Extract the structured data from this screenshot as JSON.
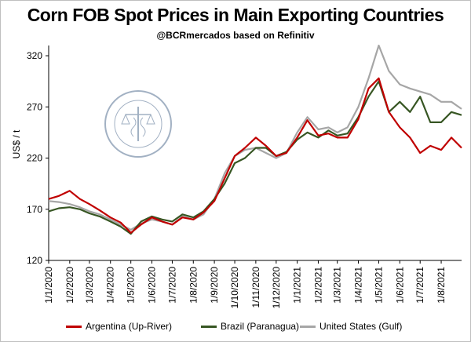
{
  "chart_data": {
    "type": "line",
    "title": "Corn FOB Spot Prices in Main Exporting Countries",
    "subtitle": "@BCRmercados based on Refinitiv",
    "ylabel": "US$ / t",
    "ylim": [
      120,
      330
    ],
    "yticks": [
      120,
      170,
      220,
      270,
      320
    ],
    "xlim": [
      "2020-01-01",
      "2021-08-31"
    ],
    "xticks": [
      "1/1/2020",
      "1/2/2020",
      "1/3/2020",
      "1/4/2020",
      "1/5/2020",
      "1/6/2020",
      "1/7/2020",
      "1/8/2020",
      "1/9/2020",
      "1/10/2020",
      "1/11/2020",
      "1/12/2020",
      "1/1/2021",
      "1/2/2021",
      "1/3/2021",
      "1/4/2021",
      "1/5/2021",
      "1/6/2021",
      "1/7/2021",
      "1/8/2021"
    ],
    "x_dates": [
      "2020-01-01",
      "2020-01-16",
      "2020-02-01",
      "2020-02-16",
      "2020-03-01",
      "2020-03-16",
      "2020-04-01",
      "2020-04-16",
      "2020-05-01",
      "2020-05-16",
      "2020-06-01",
      "2020-06-16",
      "2020-07-01",
      "2020-07-16",
      "2020-08-01",
      "2020-08-16",
      "2020-09-01",
      "2020-09-16",
      "2020-10-01",
      "2020-10-16",
      "2020-11-01",
      "2020-11-16",
      "2020-12-01",
      "2020-12-16",
      "2021-01-01",
      "2021-01-16",
      "2021-02-01",
      "2021-02-16",
      "2021-03-01",
      "2021-03-16",
      "2021-04-01",
      "2021-04-16",
      "2021-05-01",
      "2021-05-16",
      "2021-06-01",
      "2021-06-16",
      "2021-07-01",
      "2021-07-16",
      "2021-08-01",
      "2021-08-16",
      "2021-08-31"
    ],
    "series": [
      {
        "name": "Argentina (Up-River)",
        "color": "#c00000",
        "values": [
          180,
          183,
          188,
          180,
          175,
          169,
          162,
          157,
          147,
          155,
          162,
          158,
          155,
          162,
          160,
          167,
          178,
          200,
          222,
          230,
          240,
          232,
          222,
          225,
          240,
          257,
          242,
          244,
          240,
          240,
          258,
          288,
          298,
          265,
          250,
          240,
          225,
          232,
          228,
          240,
          230
        ]
      },
      {
        "name": "Brazil (Paranagua)",
        "color": "#375623",
        "values": [
          168,
          171,
          172,
          170,
          166,
          163,
          158,
          153,
          146,
          158,
          163,
          160,
          158,
          165,
          162,
          168,
          180,
          195,
          215,
          220,
          230,
          230,
          222,
          226,
          238,
          245,
          240,
          247,
          242,
          244,
          260,
          280,
          295,
          265,
          275,
          265,
          280,
          255,
          255,
          265,
          262
        ]
      },
      {
        "name": "United States (Gulf)",
        "color": "#a6a6a6",
        "values": [
          178,
          177,
          175,
          172,
          168,
          165,
          160,
          155,
          150,
          156,
          160,
          158,
          155,
          163,
          160,
          165,
          180,
          205,
          222,
          228,
          230,
          225,
          220,
          225,
          245,
          260,
          248,
          250,
          245,
          250,
          270,
          298,
          330,
          305,
          292,
          288,
          285,
          282,
          275,
          275,
          268
        ]
      }
    ],
    "legend_position": "bottom",
    "grid": false
  }
}
